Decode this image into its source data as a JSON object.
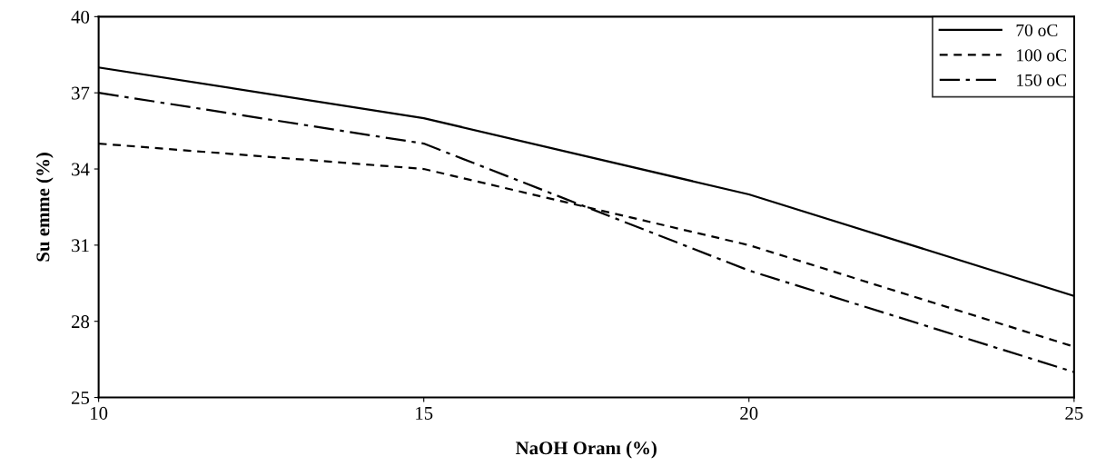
{
  "chart_data": {
    "type": "line",
    "xlabel": "NaOH Oranı (%)",
    "ylabel": "Su emme (%)",
    "x": [
      10,
      15,
      20,
      25
    ],
    "series": [
      {
        "name": "70 oC",
        "color": "#000000",
        "line_style": "solid",
        "values": [
          38,
          36,
          33,
          29
        ]
      },
      {
        "name": "100 oC",
        "color": "#000000",
        "line_style": "dashed",
        "values": [
          35,
          34,
          31,
          27
        ]
      },
      {
        "name": "150 oC",
        "color": "#000000",
        "line_style": "dashdot",
        "values": [
          37,
          35,
          30,
          26
        ]
      }
    ],
    "xlim": [
      10,
      25
    ],
    "xticks": [
      10,
      15,
      20,
      25
    ],
    "ylim": [
      25,
      40
    ],
    "yticks": [
      25,
      28,
      31,
      34,
      37,
      40
    ],
    "grid": false,
    "legend": "top right",
    "marker": "none"
  }
}
